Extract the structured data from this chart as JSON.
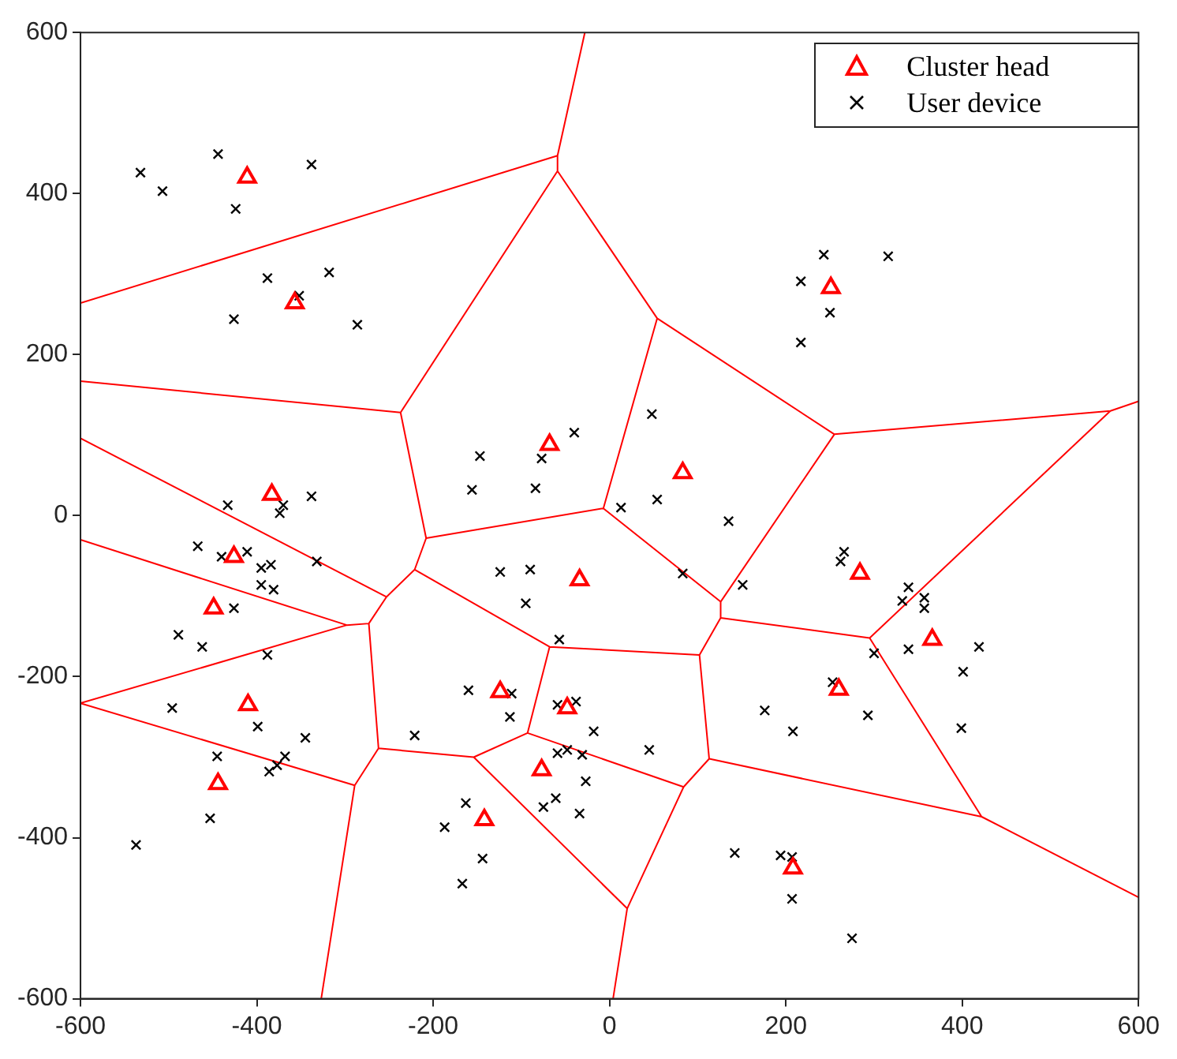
{
  "chart_data": {
    "type": "scatter",
    "xlim": [
      -600,
      600
    ],
    "ylim": [
      -600,
      600
    ],
    "xticks": [
      -600,
      -400,
      -200,
      0,
      200,
      400,
      600
    ],
    "yticks": [
      -600,
      -400,
      -200,
      0,
      200,
      400,
      600
    ],
    "grid": false,
    "legend": "top right",
    "series": [
      {
        "name": "Cluster head",
        "marker": "triangle",
        "color": "#ff0000",
        "x": [
          -411,
          -357,
          -68,
          83,
          -383,
          -426,
          -34,
          284,
          -449,
          366,
          -410,
          260,
          -124,
          -48,
          -77,
          -444,
          -142,
          208,
          251
        ],
        "values": [
          420,
          264,
          88,
          53,
          26,
          -51,
          -80,
          -72,
          -115,
          -154,
          -235,
          -216,
          -219,
          -239,
          -316,
          -333,
          -378,
          -438,
          283
        ]
      },
      {
        "name": "User device",
        "marker": "cross",
        "color": "#000000",
        "x": [
          -532,
          -507,
          -444,
          -424,
          -338,
          -388,
          -318,
          -426,
          -352,
          -286,
          -433,
          -370,
          -374,
          -338,
          -332,
          -467,
          -440,
          -411,
          -395,
          -384,
          -395,
          -381,
          -426,
          -489,
          -462,
          -388,
          -496,
          -399,
          -345,
          -445,
          -368,
          -377,
          -386,
          -453,
          -537,
          -221,
          -147,
          -77,
          -156,
          -84,
          -40,
          -124,
          -90,
          -95,
          -57,
          -160,
          -111,
          -113,
          -59,
          -38,
          -18,
          -59,
          -48,
          -31,
          -27,
          -61,
          -75,
          -34,
          -163,
          -187,
          -144,
          -167,
          243,
          316,
          217,
          250,
          217,
          48,
          54,
          13,
          135,
          83,
          151,
          266,
          262,
          339,
          332,
          357,
          357,
          300,
          339,
          419,
          401,
          399,
          253,
          176,
          208,
          293,
          45,
          142,
          194,
          207,
          207,
          275
        ],
        "values": [
          426,
          403,
          449,
          381,
          436,
          295,
          302,
          244,
          273,
          237,
          13,
          13,
          3,
          24,
          -57,
          -38,
          -51,
          -45,
          -65,
          -61,
          -86,
          -92,
          -115,
          -148,
          -163,
          -173,
          -239,
          -262,
          -276,
          -299,
          -299,
          -310,
          -318,
          -376,
          -409,
          -273,
          74,
          71,
          32,
          34,
          103,
          -70,
          -67,
          -109,
          -154,
          -217,
          -221,
          -250,
          -235,
          -231,
          -268,
          -295,
          -291,
          -297,
          -330,
          -351,
          -362,
          -370,
          -357,
          -387,
          -426,
          -457,
          324,
          322,
          291,
          252,
          215,
          126,
          20,
          10,
          -7,
          -72,
          -86,
          -45,
          -57,
          -89,
          -106,
          -102,
          -115,
          -171,
          -166,
          -163,
          -194,
          -264,
          -207,
          -242,
          -268,
          -248,
          -291,
          -419,
          -422,
          -424,
          -476,
          -525
        ]
      },
      {
        "type": "line",
        "marker": "none",
        "line_style": "solid",
        "color": "#ff0000",
        "x": [
          -28,
          -59,
          -600,
          null,
          -59,
          -59,
          -237,
          -600,
          null,
          -59,
          54,
          255,
          568,
          600,
          null,
          -237,
          -208,
          -221,
          -253,
          -600,
          null,
          -208,
          -7,
          54,
          null,
          -7,
          126,
          255,
          null,
          568,
          295,
          422,
          600,
          null,
          126,
          126,
          295,
          null,
          126,
          102,
          113,
          422,
          null,
          102,
          -68,
          -221,
          null,
          113,
          84,
          20,
          4,
          null,
          84,
          -93,
          -68,
          null,
          -93,
          -154,
          20,
          null,
          -253,
          -273,
          -298,
          -600,
          null,
          -298,
          -600,
          -289,
          -327,
          null,
          -273,
          -262,
          -289,
          null,
          -262,
          -154
        ],
        "values": [
          600,
          447,
          264,
          null,
          447,
          428,
          128,
          167,
          null,
          428,
          245,
          101,
          130,
          142,
          null,
          128,
          -28,
          -67,
          -101,
          96,
          null,
          -28,
          9,
          245,
          null,
          9,
          -107,
          101,
          null,
          130,
          -152,
          -374,
          -474,
          null,
          -107,
          -127,
          -152,
          null,
          -127,
          -173,
          -302,
          -374,
          null,
          -173,
          -163,
          -67,
          null,
          -302,
          -337,
          -488,
          -600,
          null,
          -337,
          -270,
          -163,
          null,
          -270,
          -300,
          -488,
          null,
          -101,
          -134,
          -136,
          -30,
          null,
          -136,
          -233,
          -335,
          -600,
          null,
          -134,
          -289,
          -335,
          null,
          -289,
          -300
        ]
      }
    ]
  }
}
